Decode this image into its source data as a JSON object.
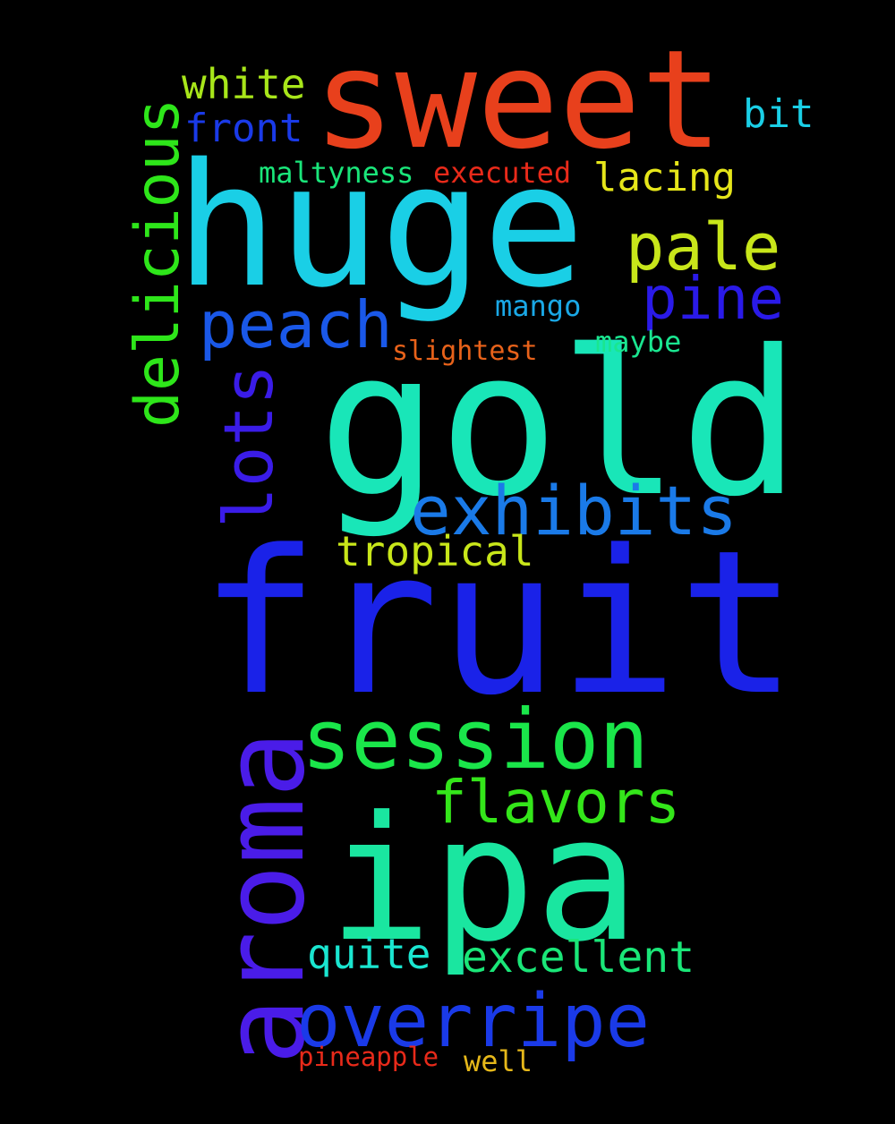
{
  "background": "#000000",
  "words": [
    {
      "id": "sweet",
      "text": "sweet",
      "color": "#e8401c",
      "orientation": "horizontal"
    },
    {
      "id": "huge",
      "text": "huge",
      "color": "#1acfe6",
      "orientation": "horizontal"
    },
    {
      "id": "gold",
      "text": "gold",
      "color": "#19e6b8",
      "orientation": "horizontal"
    },
    {
      "id": "fruit",
      "text": "fruit",
      "color": "#1a22e8",
      "orientation": "horizontal"
    },
    {
      "id": "ipa",
      "text": "ipa",
      "color": "#1ae6a0",
      "orientation": "horizontal"
    },
    {
      "id": "aroma",
      "text": "aroma",
      "color": "#4a1ce8",
      "orientation": "vertical"
    },
    {
      "id": "session",
      "text": "session",
      "color": "#1ae64a",
      "orientation": "horizontal"
    },
    {
      "id": "exhibits",
      "text": "exhibits",
      "color": "#1a7ae8",
      "orientation": "horizontal"
    },
    {
      "id": "overripe",
      "text": "overripe",
      "color": "#1a3ae8",
      "orientation": "horizontal"
    },
    {
      "id": "delicious",
      "text": "delicious",
      "color": "#2ee61a",
      "orientation": "vertical"
    },
    {
      "id": "peach",
      "text": "peach",
      "color": "#1a58e8",
      "orientation": "horizontal"
    },
    {
      "id": "pale",
      "text": "pale",
      "color": "#c8e61a",
      "orientation": "horizontal"
    },
    {
      "id": "pine",
      "text": "pine",
      "color": "#2a1ae8",
      "orientation": "horizontal"
    },
    {
      "id": "lots",
      "text": "lots",
      "color": "#3a1ce8",
      "orientation": "vertical"
    },
    {
      "id": "flavors",
      "text": "flavors",
      "color": "#34e61a",
      "orientation": "horizontal"
    },
    {
      "id": "excellent",
      "text": "excellent",
      "color": "#1ae678",
      "orientation": "horizontal"
    },
    {
      "id": "quite",
      "text": "quite",
      "color": "#1ae6d0",
      "orientation": "horizontal"
    },
    {
      "id": "tropical",
      "text": "tropical",
      "color": "#c8e61a",
      "orientation": "horizontal"
    },
    {
      "id": "white",
      "text": "white",
      "color": "#a8e61a",
      "orientation": "horizontal"
    },
    {
      "id": "front",
      "text": "front",
      "color": "#1a3ae8",
      "orientation": "horizontal"
    },
    {
      "id": "lacing",
      "text": "lacing",
      "color": "#e6e61a",
      "orientation": "horizontal"
    },
    {
      "id": "bit",
      "text": "bit",
      "color": "#1acfe6",
      "orientation": "horizontal"
    },
    {
      "id": "maltyness",
      "text": "maltyness",
      "color": "#1ae67a",
      "orientation": "horizontal"
    },
    {
      "id": "executed",
      "text": "executed",
      "color": "#e82a1a",
      "orientation": "horizontal"
    },
    {
      "id": "mango",
      "text": "mango",
      "color": "#1aa8e6",
      "orientation": "horizontal"
    },
    {
      "id": "maybe",
      "text": "maybe",
      "color": "#1ae690",
      "orientation": "horizontal"
    },
    {
      "id": "slightest",
      "text": "slightest",
      "color": "#e8621a",
      "orientation": "horizontal"
    },
    {
      "id": "pineapple",
      "text": "pineapple",
      "color": "#e82a1a",
      "orientation": "horizontal"
    },
    {
      "id": "well",
      "text": "well",
      "color": "#e6b81a",
      "orientation": "horizontal"
    }
  ]
}
